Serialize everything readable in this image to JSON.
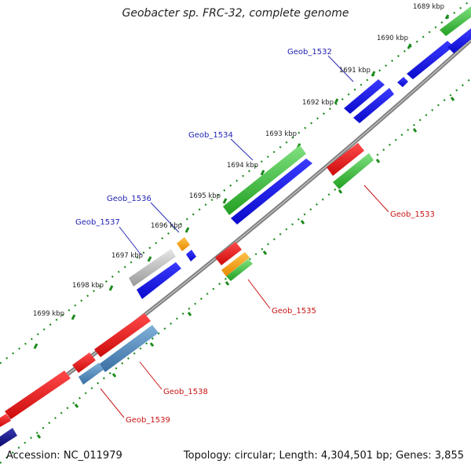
{
  "title": "Geobacter sp. FRC-32, complete genome",
  "footer": {
    "accession": "Accession: NC_011979",
    "topology": "Topology: circular; Length: 4,304,501 bp; Genes: 3,855"
  },
  "scale_labels": [
    "1689 kbp",
    "1690 kbp",
    "1691 kbp",
    "1692 kbp",
    "1693 kbp",
    "1694 kbp",
    "1695 kbp",
    "1696 kbp",
    "1697 kbp",
    "1698 kbp",
    "1699 kbp"
  ],
  "gene_labels": [
    "Geob_1532",
    "Geob_1533",
    "Geob_1534",
    "Geob_1535",
    "Geob_1536",
    "Geob_1537",
    "Geob_1538",
    "Geob_1539"
  ],
  "colors": {
    "backbone": "#8c8c8c",
    "tick": "#1b8a1b",
    "label_plus_strand": "#1f1fb4",
    "label_minus_strand": "#c81414",
    "green": "#33b233",
    "blue": "#1414e6",
    "red": "#e61414",
    "orange": "#ff9900",
    "steelblue": "#4682b4",
    "gray": "#b0b0b0",
    "navy": "#14148c"
  }
}
